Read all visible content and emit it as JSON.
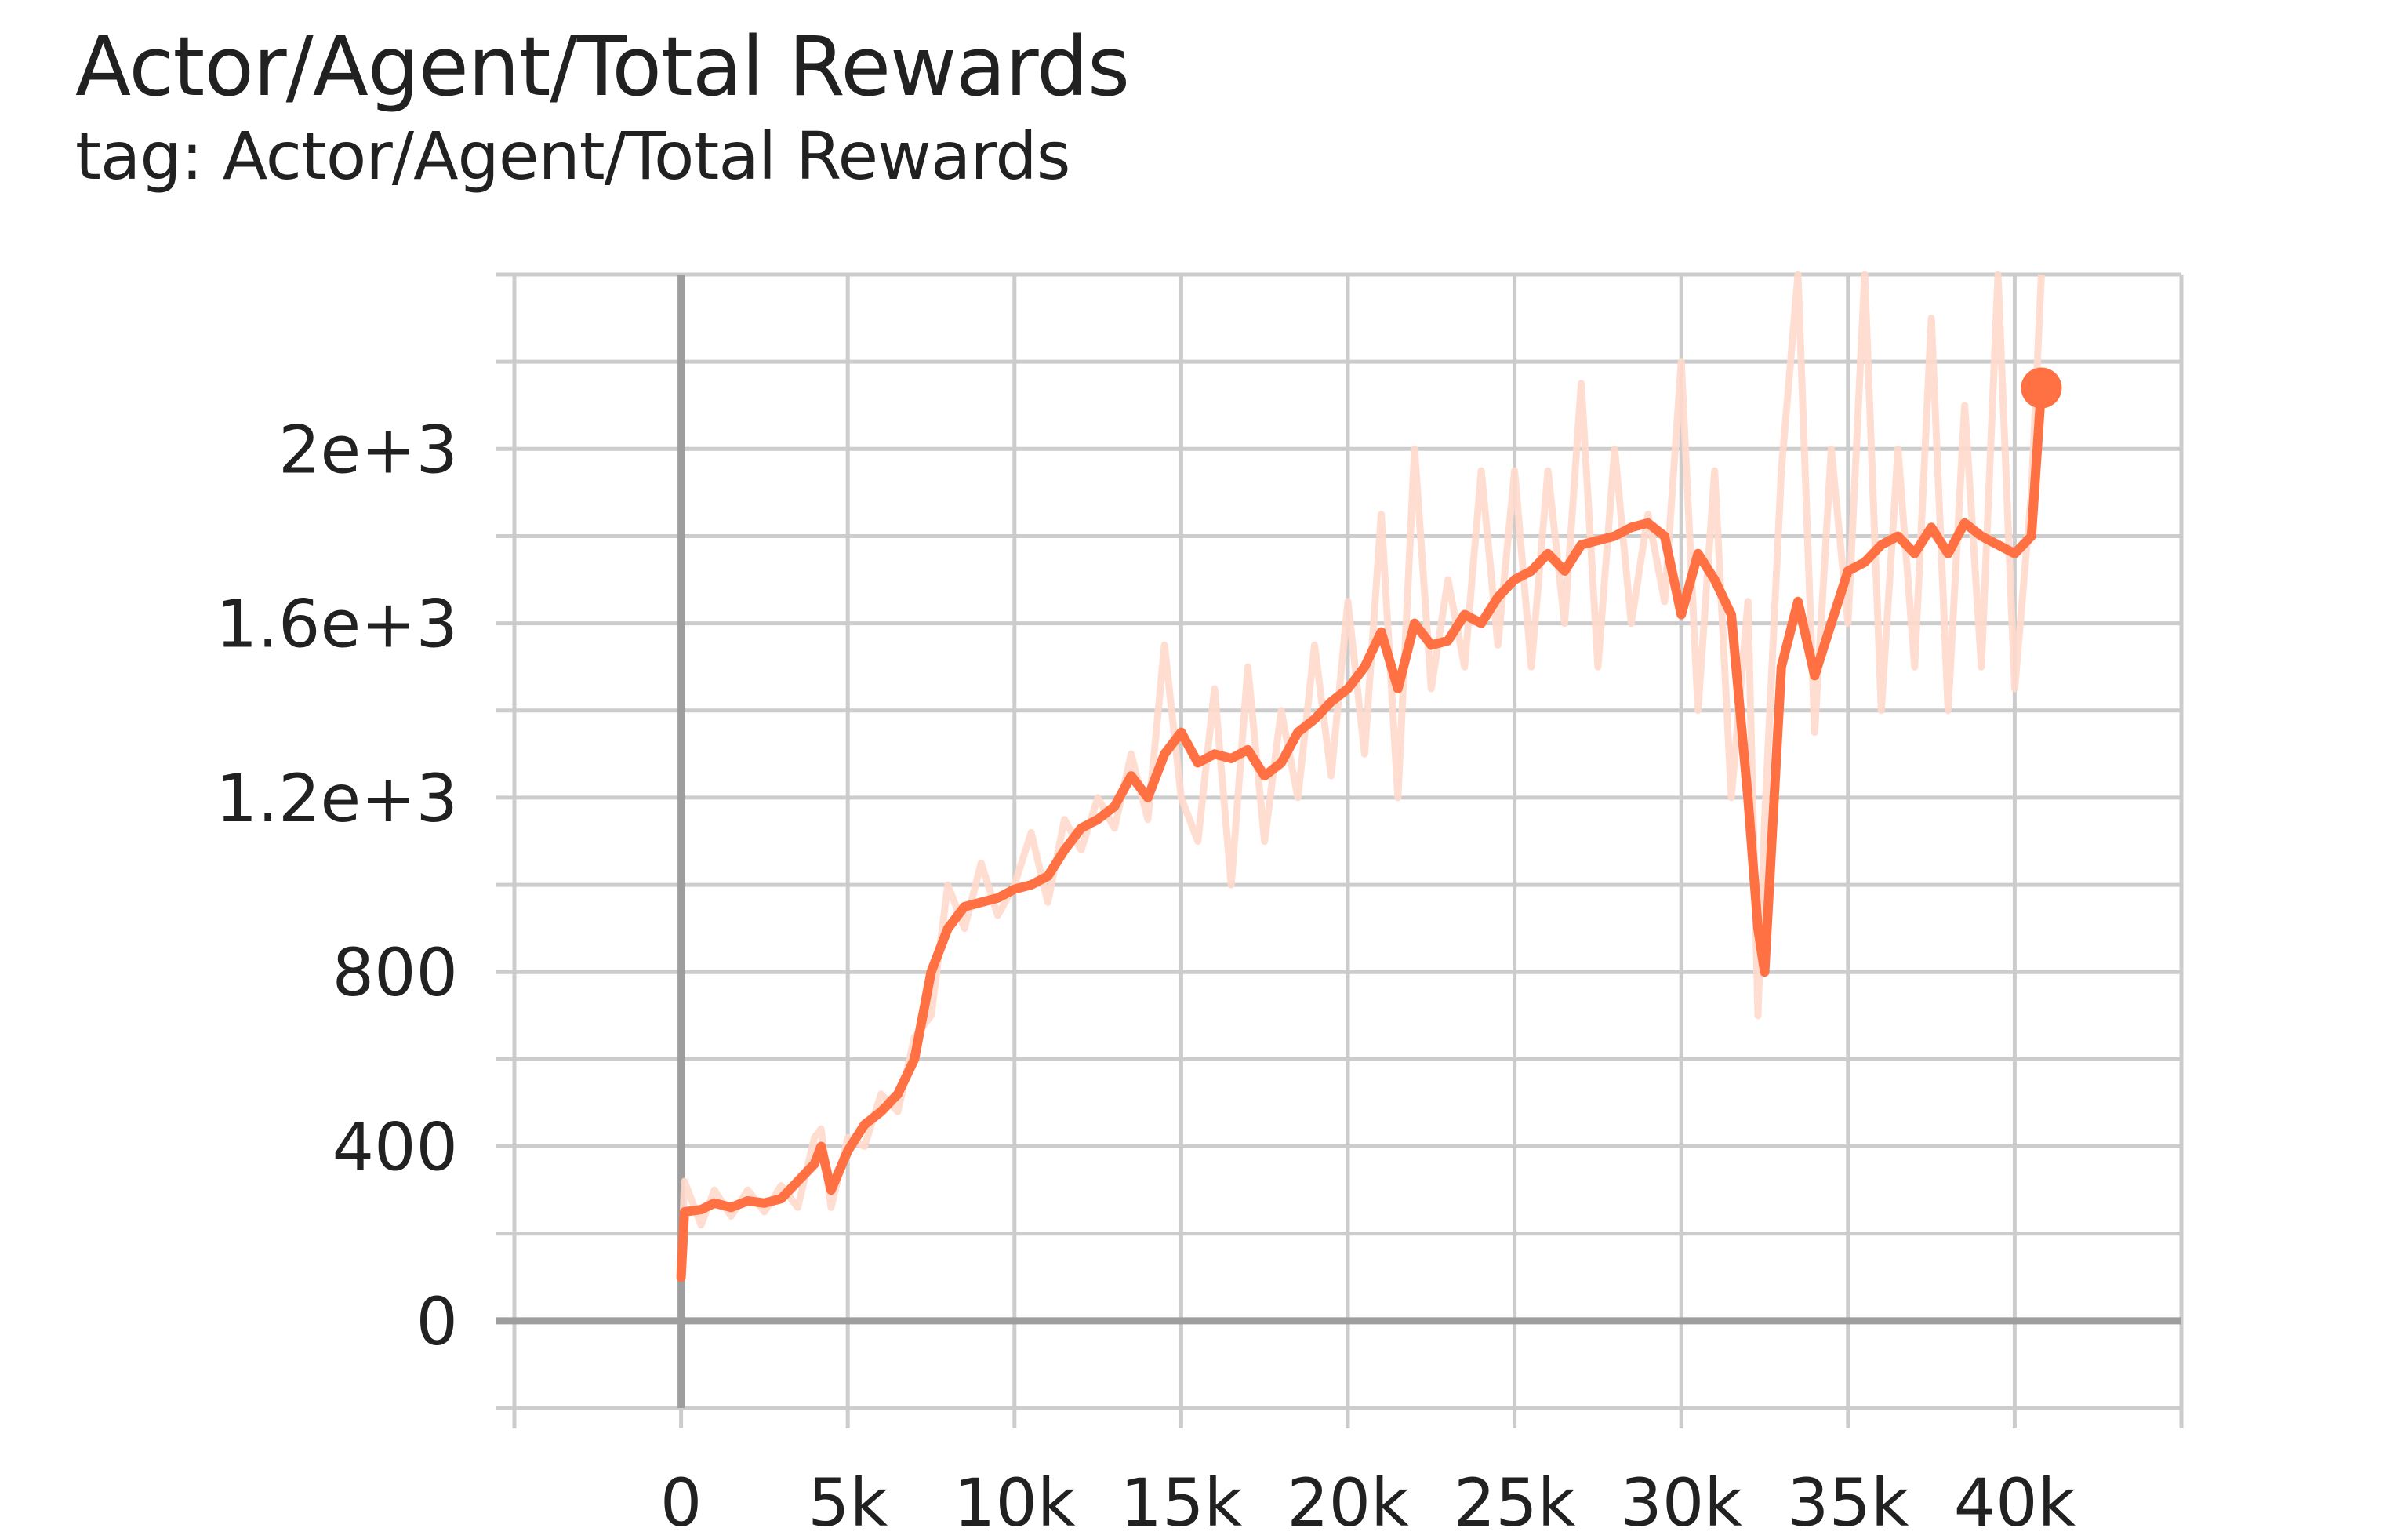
{
  "header": {
    "title": "Actor/Agent/Total Rewards",
    "subtitle": "tag: Actor/Agent/Total Rewards"
  },
  "colors": {
    "smoothed": "#ff7043",
    "raw": "#ffd9cc",
    "grid": "#cccccc",
    "zero_axis": "#9e9e9e",
    "text": "#212121"
  },
  "chart_data": {
    "type": "line",
    "title": "Actor/Agent/Total Rewards",
    "subtitle": "tag: Actor/Agent/Total Rewards",
    "xlim": [
      -5000,
      45000
    ],
    "ylim": [
      -200,
      2400
    ],
    "x_ticks": [
      0,
      5000,
      10000,
      15000,
      20000,
      25000,
      30000,
      35000,
      40000
    ],
    "x_tick_labels": [
      "0",
      "5k",
      "10k",
      "15k",
      "20k",
      "25k",
      "30k",
      "35k",
      "40k"
    ],
    "y_ticks": [
      0,
      400,
      800,
      1200,
      1600,
      2000
    ],
    "y_tick_labels": [
      "0",
      "400",
      "800",
      "1.2e+3",
      "1.6e+3",
      "2e+3"
    ],
    "grid": true,
    "series": [
      {
        "style": "smoothed",
        "x": [
          0,
          100,
          600,
          1000,
          1500,
          2000,
          2500,
          3000,
          3500,
          4000,
          4200,
          4500,
          5000,
          5500,
          6000,
          6500,
          7000,
          7500,
          8000,
          8500,
          9000,
          9500,
          10000,
          10500,
          11000,
          11500,
          12000,
          12500,
          13000,
          13500,
          14000,
          14500,
          15000,
          15500,
          16000,
          16500,
          17000,
          17500,
          18000,
          18500,
          19000,
          19500,
          20000,
          20500,
          21000,
          21500,
          22000,
          22500,
          23000,
          23500,
          24000,
          24500,
          25000,
          25500,
          26000,
          26500,
          27000,
          27500,
          28000,
          28500,
          29000,
          29500,
          30000,
          30500,
          31000,
          31500,
          32000,
          32300,
          32500,
          33000,
          33500,
          34000,
          34500,
          35000,
          35500,
          36000,
          36500,
          37000,
          37500,
          38000,
          38500,
          39000,
          39500,
          40000,
          40500,
          40800
        ],
        "y": [
          100,
          250,
          255,
          270,
          260,
          275,
          270,
          280,
          320,
          360,
          400,
          300,
          390,
          450,
          480,
          520,
          600,
          800,
          900,
          950,
          960,
          970,
          990,
          1000,
          1020,
          1080,
          1130,
          1150,
          1180,
          1250,
          1200,
          1300,
          1350,
          1280,
          1300,
          1290,
          1310,
          1250,
          1280,
          1350,
          1380,
          1420,
          1450,
          1500,
          1580,
          1450,
          1600,
          1550,
          1560,
          1620,
          1600,
          1660,
          1700,
          1720,
          1760,
          1720,
          1780,
          1790,
          1800,
          1820,
          1830,
          1800,
          1620,
          1760,
          1700,
          1620,
          1200,
          900,
          800,
          1500,
          1650,
          1480,
          1600,
          1720,
          1740,
          1780,
          1800,
          1760,
          1820,
          1760,
          1830,
          1800,
          1780,
          1760,
          1800,
          2140
        ]
      },
      {
        "style": "raw",
        "x": [
          0,
          100,
          600,
          1000,
          1500,
          2000,
          2500,
          3000,
          3500,
          4000,
          4200,
          4500,
          5000,
          5500,
          6000,
          6500,
          7000,
          7500,
          8000,
          8500,
          9000,
          9500,
          10000,
          10500,
          11000,
          11500,
          12000,
          12500,
          13000,
          13500,
          14000,
          14500,
          15000,
          15500,
          16000,
          16500,
          17000,
          17500,
          18000,
          18500,
          19000,
          19500,
          20000,
          20500,
          21000,
          21500,
          22000,
          22500,
          23000,
          23500,
          24000,
          24500,
          25000,
          25500,
          26000,
          26500,
          27000,
          27500,
          28000,
          28500,
          29000,
          29500,
          30000,
          30500,
          31000,
          31500,
          32000,
          32300,
          32500,
          33000,
          33500,
          34000,
          34500,
          35000,
          35500,
          36000,
          36500,
          37000,
          37500,
          38000,
          38500,
          39000,
          39500,
          40000,
          40500,
          40800
        ],
        "y": [
          100,
          320,
          220,
          300,
          240,
          300,
          250,
          310,
          260,
          420,
          440,
          260,
          420,
          400,
          520,
          480,
          650,
          700,
          1000,
          900,
          1050,
          930,
          1000,
          1120,
          960,
          1150,
          1080,
          1200,
          1130,
          1300,
          1150,
          1550,
          1200,
          1100,
          1450,
          1000,
          1500,
          1100,
          1400,
          1200,
          1550,
          1250,
          1650,
          1300,
          1850,
          1200,
          2000,
          1450,
          1700,
          1500,
          1950,
          1550,
          1950,
          1500,
          1950,
          1600,
          2150,
          1500,
          2000,
          1600,
          1850,
          1650,
          2200,
          1400,
          1950,
          1200,
          1650,
          700,
          1150,
          1950,
          2400,
          1350,
          2000,
          1600,
          2400,
          1400,
          2000,
          1500,
          2300,
          1400,
          2100,
          1500,
          2400,
          1450,
          1900,
          2400
        ]
      }
    ]
  }
}
